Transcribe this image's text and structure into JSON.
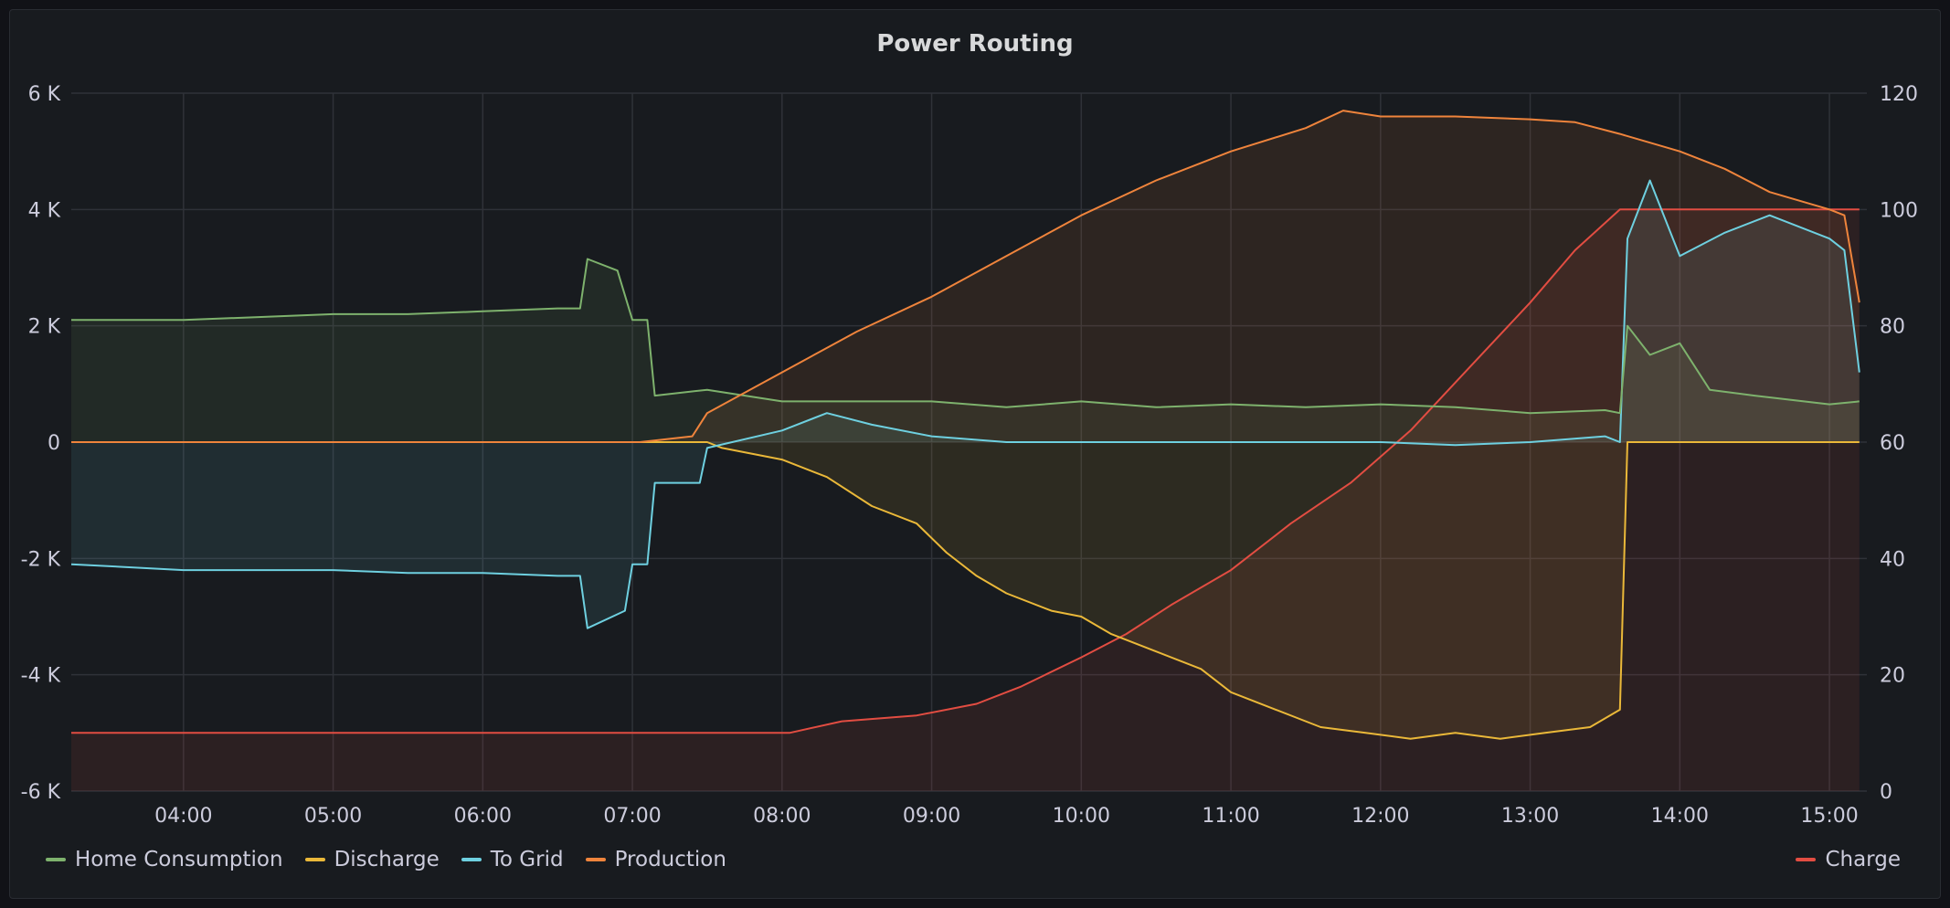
{
  "panel": {
    "title": "Power Routing"
  },
  "chart_data": {
    "type": "line",
    "title": "Power Routing",
    "x_ticks": [
      "04:00",
      "05:00",
      "06:00",
      "07:00",
      "08:00",
      "09:00",
      "10:00",
      "11:00",
      "12:00",
      "13:00",
      "14:00",
      "15:00"
    ],
    "x_range_hours": [
      3.25,
      15.25
    ],
    "y_left": {
      "ticks": [
        "6 K",
        "4 K",
        "2 K",
        "0",
        "-2 K",
        "-4 K",
        "-6 K"
      ],
      "range": [
        -6000,
        6000
      ]
    },
    "y_right": {
      "ticks": [
        "120",
        "100",
        "80",
        "60",
        "40",
        "20",
        "0"
      ],
      "range": [
        0,
        120
      ]
    },
    "grid": true,
    "legend_placement": "bottom",
    "series": [
      {
        "name": "Home Consumption",
        "color": "#7eb26d",
        "axis": "left",
        "points": [
          [
            3.25,
            2100
          ],
          [
            4.0,
            2100
          ],
          [
            4.5,
            2150
          ],
          [
            5.0,
            2200
          ],
          [
            5.5,
            2200
          ],
          [
            6.0,
            2250
          ],
          [
            6.5,
            2300
          ],
          [
            6.65,
            2300
          ],
          [
            6.7,
            3150
          ],
          [
            6.9,
            2950
          ],
          [
            7.0,
            2100
          ],
          [
            7.1,
            2100
          ],
          [
            7.15,
            800
          ],
          [
            7.5,
            900
          ],
          [
            8.0,
            700
          ],
          [
            8.5,
            700
          ],
          [
            9.0,
            700
          ],
          [
            9.5,
            600
          ],
          [
            10.0,
            700
          ],
          [
            10.5,
            600
          ],
          [
            11.0,
            650
          ],
          [
            11.5,
            600
          ],
          [
            12.0,
            650
          ],
          [
            12.5,
            600
          ],
          [
            13.0,
            500
          ],
          [
            13.5,
            550
          ],
          [
            13.6,
            500
          ],
          [
            13.65,
            2000
          ],
          [
            13.8,
            1500
          ],
          [
            14.0,
            1700
          ],
          [
            14.2,
            900
          ],
          [
            14.5,
            800
          ],
          [
            15.0,
            650
          ],
          [
            15.2,
            700
          ]
        ]
      },
      {
        "name": "Discharge",
        "color": "#eab839",
        "axis": "left",
        "points": [
          [
            3.25,
            0
          ],
          [
            7.5,
            0
          ],
          [
            7.6,
            -100
          ],
          [
            8.0,
            -300
          ],
          [
            8.3,
            -600
          ],
          [
            8.6,
            -1100
          ],
          [
            8.9,
            -1400
          ],
          [
            9.1,
            -1900
          ],
          [
            9.3,
            -2300
          ],
          [
            9.5,
            -2600
          ],
          [
            9.8,
            -2900
          ],
          [
            10.0,
            -3000
          ],
          [
            10.2,
            -3300
          ],
          [
            10.5,
            -3600
          ],
          [
            10.8,
            -3900
          ],
          [
            11.0,
            -4300
          ],
          [
            11.3,
            -4600
          ],
          [
            11.6,
            -4900
          ],
          [
            11.9,
            -5000
          ],
          [
            12.2,
            -5100
          ],
          [
            12.5,
            -5000
          ],
          [
            12.8,
            -5100
          ],
          [
            13.1,
            -5000
          ],
          [
            13.4,
            -4900
          ],
          [
            13.6,
            -4600
          ],
          [
            13.65,
            0
          ],
          [
            15.2,
            0
          ]
        ]
      },
      {
        "name": "To Grid",
        "color": "#6ed0e0",
        "axis": "left",
        "points": [
          [
            3.25,
            -2100
          ],
          [
            4.0,
            -2200
          ],
          [
            4.5,
            -2200
          ],
          [
            5.0,
            -2200
          ],
          [
            5.5,
            -2250
          ],
          [
            6.0,
            -2250
          ],
          [
            6.5,
            -2300
          ],
          [
            6.65,
            -2300
          ],
          [
            6.7,
            -3200
          ],
          [
            6.95,
            -2900
          ],
          [
            7.0,
            -2100
          ],
          [
            7.1,
            -2100
          ],
          [
            7.15,
            -700
          ],
          [
            7.45,
            -700
          ],
          [
            7.5,
            -100
          ],
          [
            8.0,
            200
          ],
          [
            8.3,
            500
          ],
          [
            8.6,
            300
          ],
          [
            9.0,
            100
          ],
          [
            9.5,
            0
          ],
          [
            10.0,
            0
          ],
          [
            10.5,
            0
          ],
          [
            11.0,
            0
          ],
          [
            11.5,
            0
          ],
          [
            12.0,
            0
          ],
          [
            12.5,
            -50
          ],
          [
            13.0,
            0
          ],
          [
            13.5,
            100
          ],
          [
            13.6,
            0
          ],
          [
            13.65,
            3500
          ],
          [
            13.8,
            4500
          ],
          [
            14.0,
            3200
          ],
          [
            14.3,
            3600
          ],
          [
            14.6,
            3900
          ],
          [
            15.0,
            3500
          ],
          [
            15.1,
            3300
          ],
          [
            15.2,
            1200
          ]
        ]
      },
      {
        "name": "Production",
        "color": "#ef843c",
        "axis": "left",
        "points": [
          [
            3.25,
            0
          ],
          [
            7.05,
            0
          ],
          [
            7.4,
            100
          ],
          [
            7.5,
            500
          ],
          [
            8.0,
            1200
          ],
          [
            8.5,
            1900
          ],
          [
            9.0,
            2500
          ],
          [
            9.5,
            3200
          ],
          [
            10.0,
            3900
          ],
          [
            10.5,
            4500
          ],
          [
            11.0,
            5000
          ],
          [
            11.5,
            5400
          ],
          [
            11.75,
            5700
          ],
          [
            12.0,
            5600
          ],
          [
            12.5,
            5600
          ],
          [
            13.0,
            5550
          ],
          [
            13.3,
            5500
          ],
          [
            13.6,
            5300
          ],
          [
            14.0,
            5000
          ],
          [
            14.3,
            4700
          ],
          [
            14.6,
            4300
          ],
          [
            15.0,
            4000
          ],
          [
            15.1,
            3900
          ],
          [
            15.2,
            2400
          ]
        ]
      },
      {
        "name": "Charge",
        "color": "#e24d42",
        "axis": "right",
        "points": [
          [
            3.25,
            10
          ],
          [
            8.05,
            10
          ],
          [
            8.4,
            12
          ],
          [
            8.9,
            13
          ],
          [
            9.3,
            15
          ],
          [
            9.6,
            18
          ],
          [
            10.0,
            23
          ],
          [
            10.3,
            27
          ],
          [
            10.6,
            32
          ],
          [
            11.0,
            38
          ],
          [
            11.4,
            46
          ],
          [
            11.8,
            53
          ],
          [
            12.2,
            62
          ],
          [
            12.6,
            73
          ],
          [
            13.0,
            84
          ],
          [
            13.3,
            93
          ],
          [
            13.6,
            100
          ],
          [
            15.2,
            100
          ]
        ]
      }
    ],
    "legend_left": [
      "Home Consumption",
      "Discharge",
      "To Grid",
      "Production"
    ],
    "legend_right": [
      "Charge"
    ]
  }
}
